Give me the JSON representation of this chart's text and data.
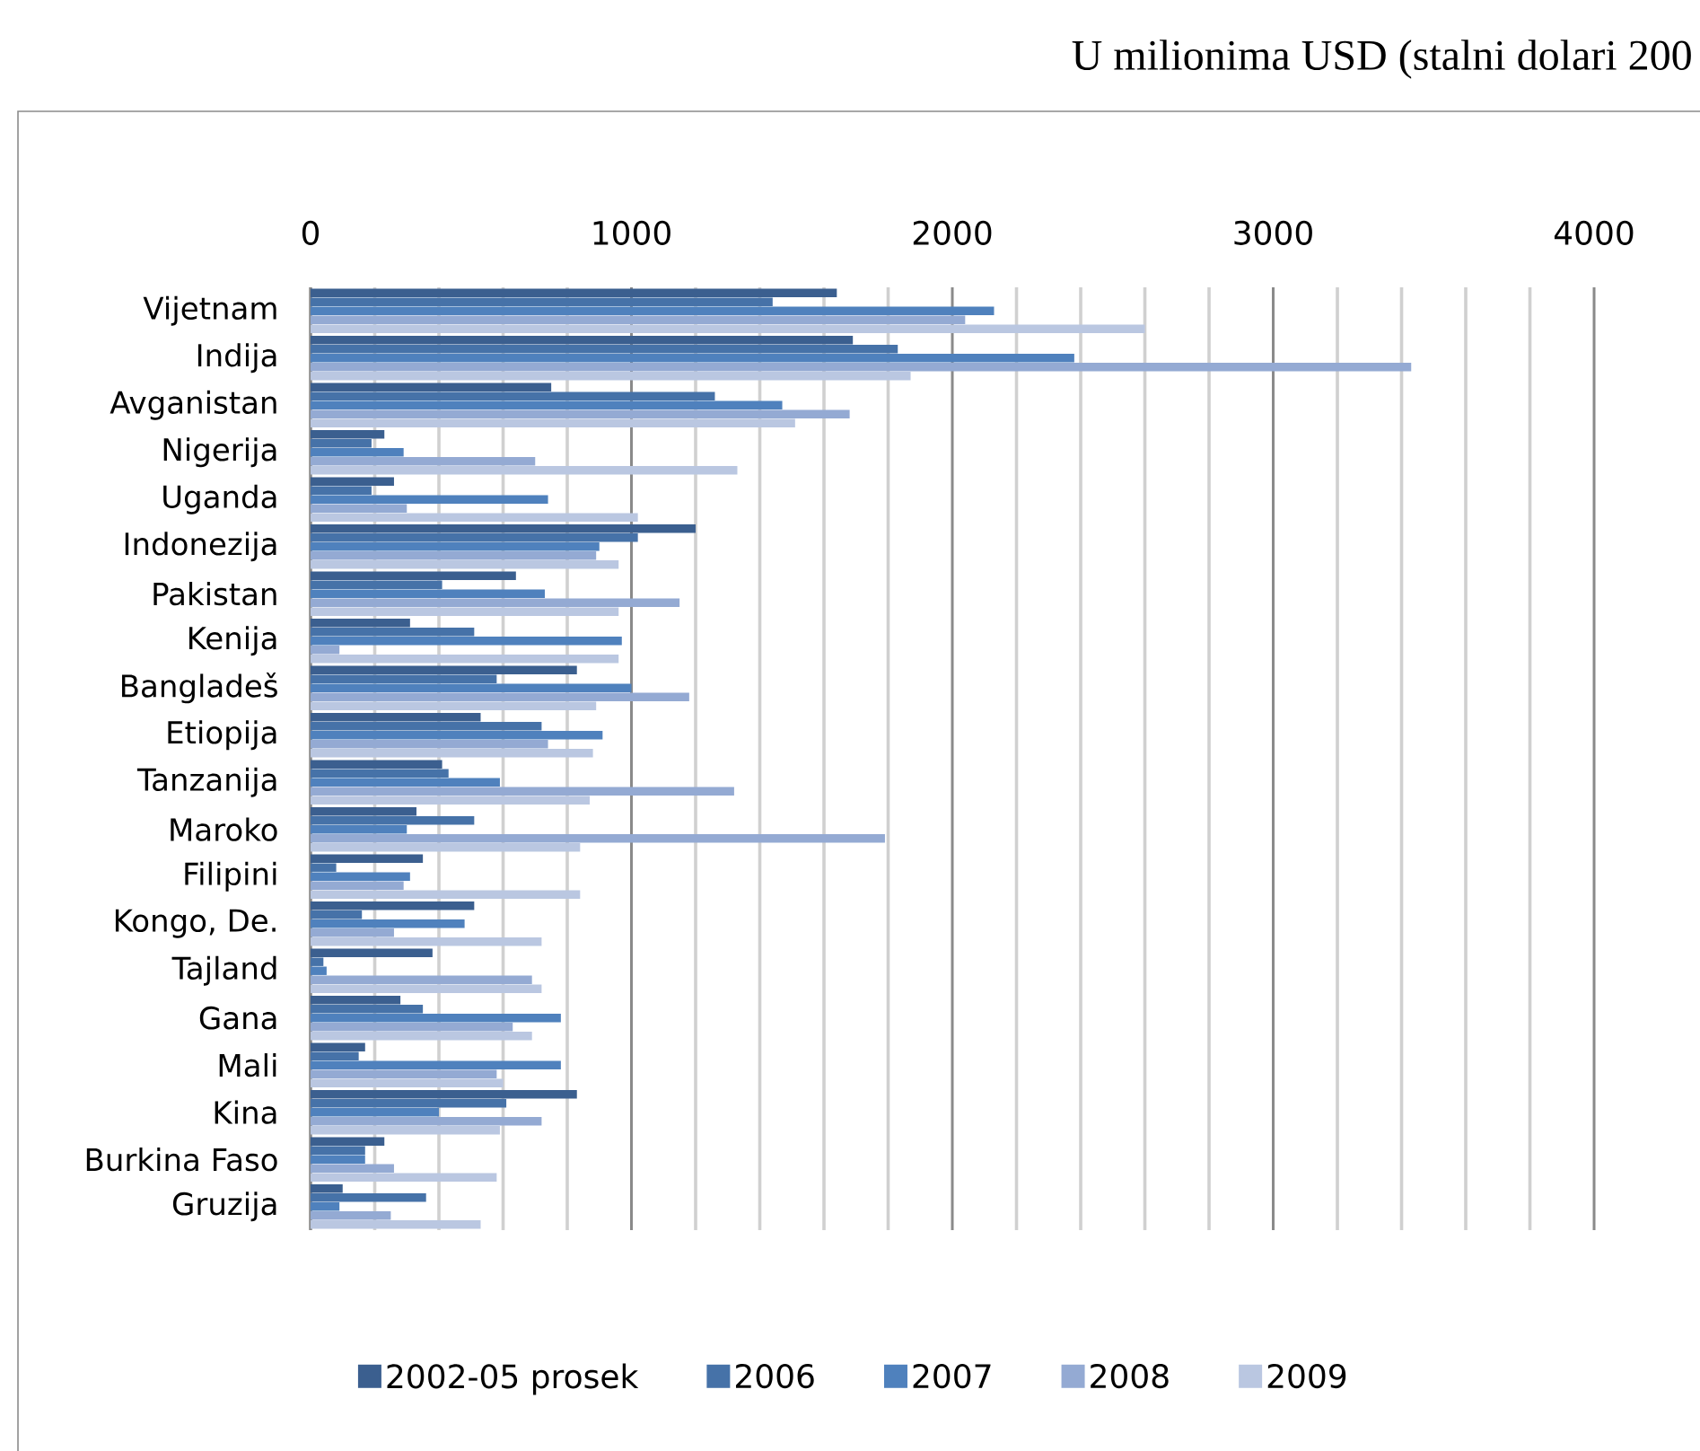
{
  "chart_data": {
    "type": "bar",
    "orientation": "horizontal",
    "title": "U milionima USD (stalni dolari 200",
    "categories": [
      "Vijetnam",
      "Indija",
      "Avganistan",
      "Nigerija",
      "Uganda",
      "Indonezija",
      "Pakistan",
      "Kenija",
      "Bangladeš",
      "Etiopija",
      "Tanzanija",
      "Maroko",
      "Filipini",
      "Kongo, De.",
      "Tajland",
      "Gana",
      "Mali",
      "Kina",
      "Burkina Faso",
      "Gruzija"
    ],
    "series": [
      {
        "name": "2002-05 prosek",
        "color": "#3b5f8f",
        "values": [
          1640,
          1690,
          750,
          230,
          260,
          1200,
          640,
          310,
          830,
          530,
          410,
          330,
          350,
          510,
          380,
          280,
          170,
          830,
          230,
          100
        ]
      },
      {
        "name": "2006",
        "color": "#4672a8",
        "values": [
          1440,
          1830,
          1260,
          190,
          190,
          1020,
          410,
          510,
          580,
          720,
          430,
          510,
          80,
          160,
          40,
          350,
          150,
          610,
          170,
          360
        ]
      },
      {
        "name": "2007",
        "color": "#4f81bd",
        "values": [
          2130,
          2380,
          1470,
          290,
          740,
          900,
          730,
          970,
          1000,
          910,
          590,
          300,
          310,
          480,
          50,
          780,
          780,
          400,
          170,
          90
        ]
      },
      {
        "name": "2008",
        "color": "#94aad3",
        "values": [
          2040,
          3430,
          1680,
          700,
          300,
          890,
          1150,
          90,
          1180,
          740,
          1320,
          1790,
          290,
          260,
          690,
          630,
          580,
          720,
          260,
          250
        ]
      },
      {
        "name": "2009",
        "color": "#bac7e1",
        "values": [
          2600,
          1870,
          1510,
          1330,
          1020,
          960,
          960,
          960,
          890,
          880,
          870,
          840,
          840,
          720,
          720,
          690,
          600,
          590,
          580,
          530
        ]
      }
    ],
    "xlim": [
      0,
      4000
    ],
    "xticks": [
      0,
      {
        "value": 200,
        "label": null
      },
      {
        "value": 400,
        "label": null
      },
      {
        "value": 600,
        "label": null
      },
      {
        "value": 800,
        "label": null
      },
      1000,
      {
        "value": 1200,
        "label": null
      },
      {
        "value": 1400,
        "label": null
      },
      {
        "value": 1600,
        "label": null
      },
      {
        "value": 1800,
        "label": null
      },
      2000,
      {
        "value": 2200,
        "label": null
      },
      {
        "value": 2400,
        "label": null
      },
      {
        "value": 2600,
        "label": null
      },
      {
        "value": 2800,
        "label": null
      },
      3000,
      {
        "value": 3200,
        "label": null
      },
      {
        "value": 3400,
        "label": null
      },
      {
        "value": 3600,
        "label": null
      },
      {
        "value": 3800,
        "label": null
      },
      4000
    ],
    "grid": "x",
    "legend": "bottom"
  }
}
